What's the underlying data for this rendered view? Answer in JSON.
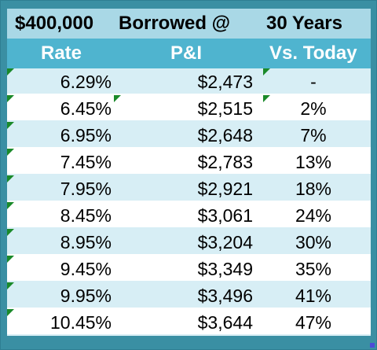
{
  "title": {
    "amount": "$400,000",
    "borrowed": "Borrowed @",
    "term": "30 Years"
  },
  "columns": {
    "rate": "Rate",
    "pi": "P&I",
    "vs": "Vs. Today"
  },
  "rows": [
    {
      "rate": "6.29%",
      "pi": "$2,473",
      "vs": "-"
    },
    {
      "rate": "6.45%",
      "pi": "$2,515",
      "vs": "2%"
    },
    {
      "rate": "6.95%",
      "pi": "$2,648",
      "vs": "7%"
    },
    {
      "rate": "7.45%",
      "pi": "$2,783",
      "vs": "13%"
    },
    {
      "rate": "7.95%",
      "pi": "$2,921",
      "vs": "18%"
    },
    {
      "rate": "8.45%",
      "pi": "$3,061",
      "vs": "24%"
    },
    {
      "rate": "8.95%",
      "pi": "$3,204",
      "vs": "30%"
    },
    {
      "rate": "9.45%",
      "pi": "$3,349",
      "vs": "35%"
    },
    {
      "rate": "9.95%",
      "pi": "$3,496",
      "vs": "41%"
    },
    {
      "rate": "10.45%",
      "pi": "$3,644",
      "vs": "47%"
    }
  ],
  "colors": {
    "title_bg": "#a9d8e6",
    "header_bg": "#4fb4cf",
    "frame": "#3a8fa3",
    "band": "#d7eef5",
    "error_triangle": "#1a8a2a"
  }
}
